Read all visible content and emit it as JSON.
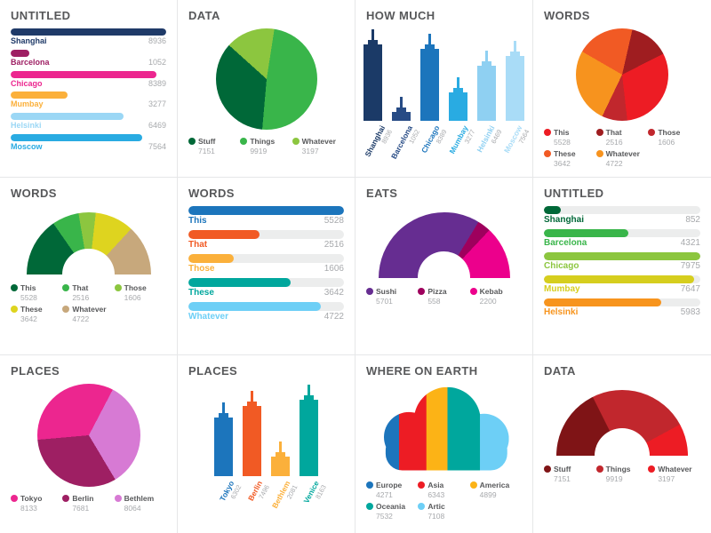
{
  "chart_data": [
    {
      "id": "untitled-bars",
      "title": "UNTITLED",
      "type": "bar",
      "variant": "hbar",
      "track": false,
      "bar_size": 8,
      "font": 9,
      "categories": [
        "Shanghai",
        "Barcelona",
        "Chicago",
        "Mumbay",
        "Helsinki",
        "Moscow"
      ],
      "values": [
        8936,
        1052,
        8389,
        3277,
        6469,
        7564
      ],
      "colors": [
        "#1f3a68",
        "#9e1f63",
        "#ec268f",
        "#fbb03b",
        "#9bd7f5",
        "#29abe2"
      ]
    },
    {
      "id": "data-pie",
      "title": "DATA",
      "type": "pie",
      "variant": "pie",
      "size": 114,
      "draw_start": 185,
      "draw_order": [
        0,
        2,
        1
      ],
      "legend_cols": 3,
      "categories": [
        "Stuff",
        "Things",
        "Whatever"
      ],
      "values": [
        7151,
        9919,
        3197
      ],
      "colors": [
        "#006838",
        "#39b54a",
        "#8cc63f"
      ]
    },
    {
      "id": "how-much-buildings",
      "title": "HOW MUCH",
      "type": "bar",
      "variant": "buildings",
      "categories": [
        "Shanghai",
        "Barcelona",
        "Chicago",
        "Mumbay",
        "Helsinki",
        "Moscow"
      ],
      "values": [
        8936,
        1052,
        8389,
        3277,
        6469,
        7564
      ],
      "colors": [
        "#1b3a67",
        "#274b85",
        "#1c75bc",
        "#29abe2",
        "#8fd0f2",
        "#a9dcf7"
      ]
    },
    {
      "id": "words-pie",
      "title": "WORDS",
      "type": "pie",
      "variant": "pie",
      "size": 104,
      "draw_start": 300,
      "draw_order": [
        3,
        1,
        0,
        2,
        4
      ],
      "legend_cols": 3,
      "categories": [
        "This",
        "That",
        "Those",
        "These",
        "Whatever"
      ],
      "values": [
        5528,
        2516,
        1606,
        3642,
        4722
      ],
      "colors": [
        "#ed1c24",
        "#9f1d20",
        "#c1272d",
        "#f15a24",
        "#f7931e"
      ]
    },
    {
      "id": "words-half-donut",
      "title": "WORDS",
      "type": "pie",
      "variant": "half",
      "size": 140,
      "hole": 0.42,
      "legend_cols": 3,
      "categories": [
        "This",
        "That",
        "Those",
        "These",
        "Whatever"
      ],
      "values": [
        5528,
        2516,
        1606,
        3642,
        4722
      ],
      "colors": [
        "#006838",
        "#39b54a",
        "#8cc63f",
        "#ded41f",
        "#c7a87c"
      ]
    },
    {
      "id": "words-bars",
      "title": "WORDS",
      "type": "bar",
      "variant": "hbar",
      "track": true,
      "bar_size": 10,
      "font": 10,
      "categories": [
        "This",
        "That",
        "Those",
        "These",
        "Whatever"
      ],
      "values": [
        5528,
        2516,
        1606,
        3642,
        4722
      ],
      "colors": [
        "#1c75bc",
        "#f15a24",
        "#fbb03b",
        "#00a79d",
        "#6dcff6"
      ]
    },
    {
      "id": "eats-half-donut",
      "title": "EATS",
      "type": "pie",
      "variant": "half",
      "size": 148,
      "hole": 0.4,
      "legend_cols": 3,
      "categories": [
        "Sushi",
        "Pizza",
        "Kebab"
      ],
      "values": [
        5701,
        558,
        2200
      ],
      "colors": [
        "#662d91",
        "#9e005d",
        "#ec008c"
      ]
    },
    {
      "id": "untitled-bars-2",
      "title": "UNTITLED",
      "type": "bar",
      "variant": "hbar",
      "track": true,
      "bar_size": 9,
      "font": 10,
      "categories": [
        "Shanghai",
        "Barcelona",
        "Chicago",
        "Mumbay",
        "Helsinki"
      ],
      "values": [
        852,
        4321,
        7975,
        7647,
        5983
      ],
      "colors": [
        "#006838",
        "#39b54a",
        "#8cc63f",
        "#d6ce1e",
        "#f7941d"
      ]
    },
    {
      "id": "places-pie",
      "title": "PLACES",
      "type": "pie",
      "variant": "pie",
      "size": 116,
      "draw_start": 265,
      "draw_order": [
        0,
        2,
        1
      ],
      "legend_cols": 3,
      "categories": [
        "Tokyo",
        "Berlin",
        "Bethlem"
      ],
      "values": [
        8133,
        7681,
        8064
      ],
      "colors": [
        "#ec268f",
        "#9e1f63",
        "#d77ad4"
      ]
    },
    {
      "id": "places-buildings",
      "title": "PLACES",
      "type": "bar",
      "variant": "buildings",
      "categories": [
        "Tokyo",
        "Berlin",
        "Bethlem",
        "Venice"
      ],
      "values": [
        6302,
        7496,
        2081,
        8163
      ],
      "colors": [
        "#1c75bc",
        "#f15a24",
        "#fbb03b",
        "#00a79d"
      ]
    },
    {
      "id": "where-on-earth-cloud",
      "title": "WHERE ON EARTH",
      "type": "bar",
      "variant": "cloud",
      "legend_cols": 3,
      "categories": [
        "Europe",
        "Asia",
        "America",
        "Oceania",
        "Artic"
      ],
      "values": [
        4271,
        6343,
        4899,
        7532,
        7108
      ],
      "colors": [
        "#1c75bc",
        "#ed1c24",
        "#fcb316",
        "#00a79d",
        "#6dcff6"
      ]
    },
    {
      "id": "data-half-donut",
      "title": "DATA",
      "type": "pie",
      "variant": "half",
      "size": 148,
      "hole": 0.42,
      "legend_cols": 3,
      "categories": [
        "Stuff",
        "Things",
        "Whatever"
      ],
      "values": [
        7151,
        9919,
        3197
      ],
      "colors": [
        "#7f1416",
        "#c1272d",
        "#ed1c24"
      ]
    }
  ]
}
